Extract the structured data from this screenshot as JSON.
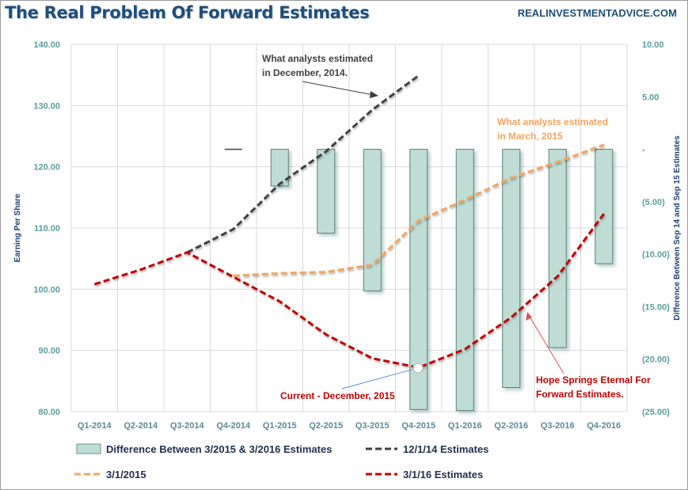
{
  "header": {
    "title": "The Real Problem Of Forward Estimates",
    "source": "REALINVESTMENTADVICE.COM"
  },
  "chart_data": {
    "type": "bar+line",
    "categories": [
      "Q1-2014",
      "Q2-2014",
      "Q3-2014",
      "Q4-2014",
      "Q1-2015",
      "Q2-2015",
      "Q3-2015",
      "Q4-2015",
      "Q1-2016",
      "Q2-2016",
      "Q3-2016",
      "Q4-2016"
    ],
    "ylabel": "Earning Per Share",
    "y2label": "Difference Between Sep 14 and Sep 15 Estimates",
    "ylim": [
      80,
      140
    ],
    "y2lim": [
      -25,
      10
    ],
    "yticks": [
      "80.00",
      "90.00",
      "100.00",
      "110.00",
      "120.00",
      "130.00",
      "140.00"
    ],
    "y2ticks": [
      "(25.00)",
      "(20.00)",
      "(15.00)",
      "(10.00)",
      "(5.00)",
      "-",
      "5.00",
      "10.00"
    ],
    "grid": true,
    "legend_position": "bottom",
    "series": [
      {
        "name": "Difference Between 3/2015 & 3/2016 Estimates",
        "kind": "bar",
        "axis": "right",
        "color": "#bfddd5",
        "values": [
          null,
          null,
          null,
          0,
          -3.5,
          -8.0,
          -13.5,
          -24.8,
          -24.9,
          -22.7,
          -18.9,
          -10.9
        ]
      },
      {
        "name": "12/1/14 Estimates",
        "kind": "line",
        "axis": "left",
        "color": "#404040",
        "values": [
          null,
          null,
          106.0,
          109.8,
          117.2,
          122.5,
          129.3,
          134.9,
          null,
          null,
          null,
          null
        ]
      },
      {
        "name": "3/1/2015",
        "kind": "line",
        "axis": "left",
        "color": "#f4a460",
        "values": [
          null,
          null,
          null,
          102.2,
          102.6,
          102.8,
          104.0,
          111.2,
          114.6,
          118.2,
          120.8,
          123.6
        ]
      },
      {
        "name": "3/1/16 Estimates",
        "kind": "line",
        "axis": "left",
        "color": "#c00000",
        "values": [
          100.8,
          103.2,
          106.0,
          102.0,
          98.0,
          92.6,
          88.7,
          87.2,
          90.2,
          95.4,
          102.1,
          112.3
        ]
      }
    ],
    "annotations": [
      {
        "text": "What analysts estimated",
        "text2": "in December, 2014.",
        "color": "#404040"
      },
      {
        "text": "What analysts estimated",
        "text2": "in March, 2015",
        "color": "#f4a460"
      },
      {
        "text": "Current - December, 2015",
        "color": "#c00000"
      },
      {
        "text": "Hope Springs Eternal  For",
        "text2": "Forward Estimates.",
        "color": "#c00000"
      }
    ]
  }
}
